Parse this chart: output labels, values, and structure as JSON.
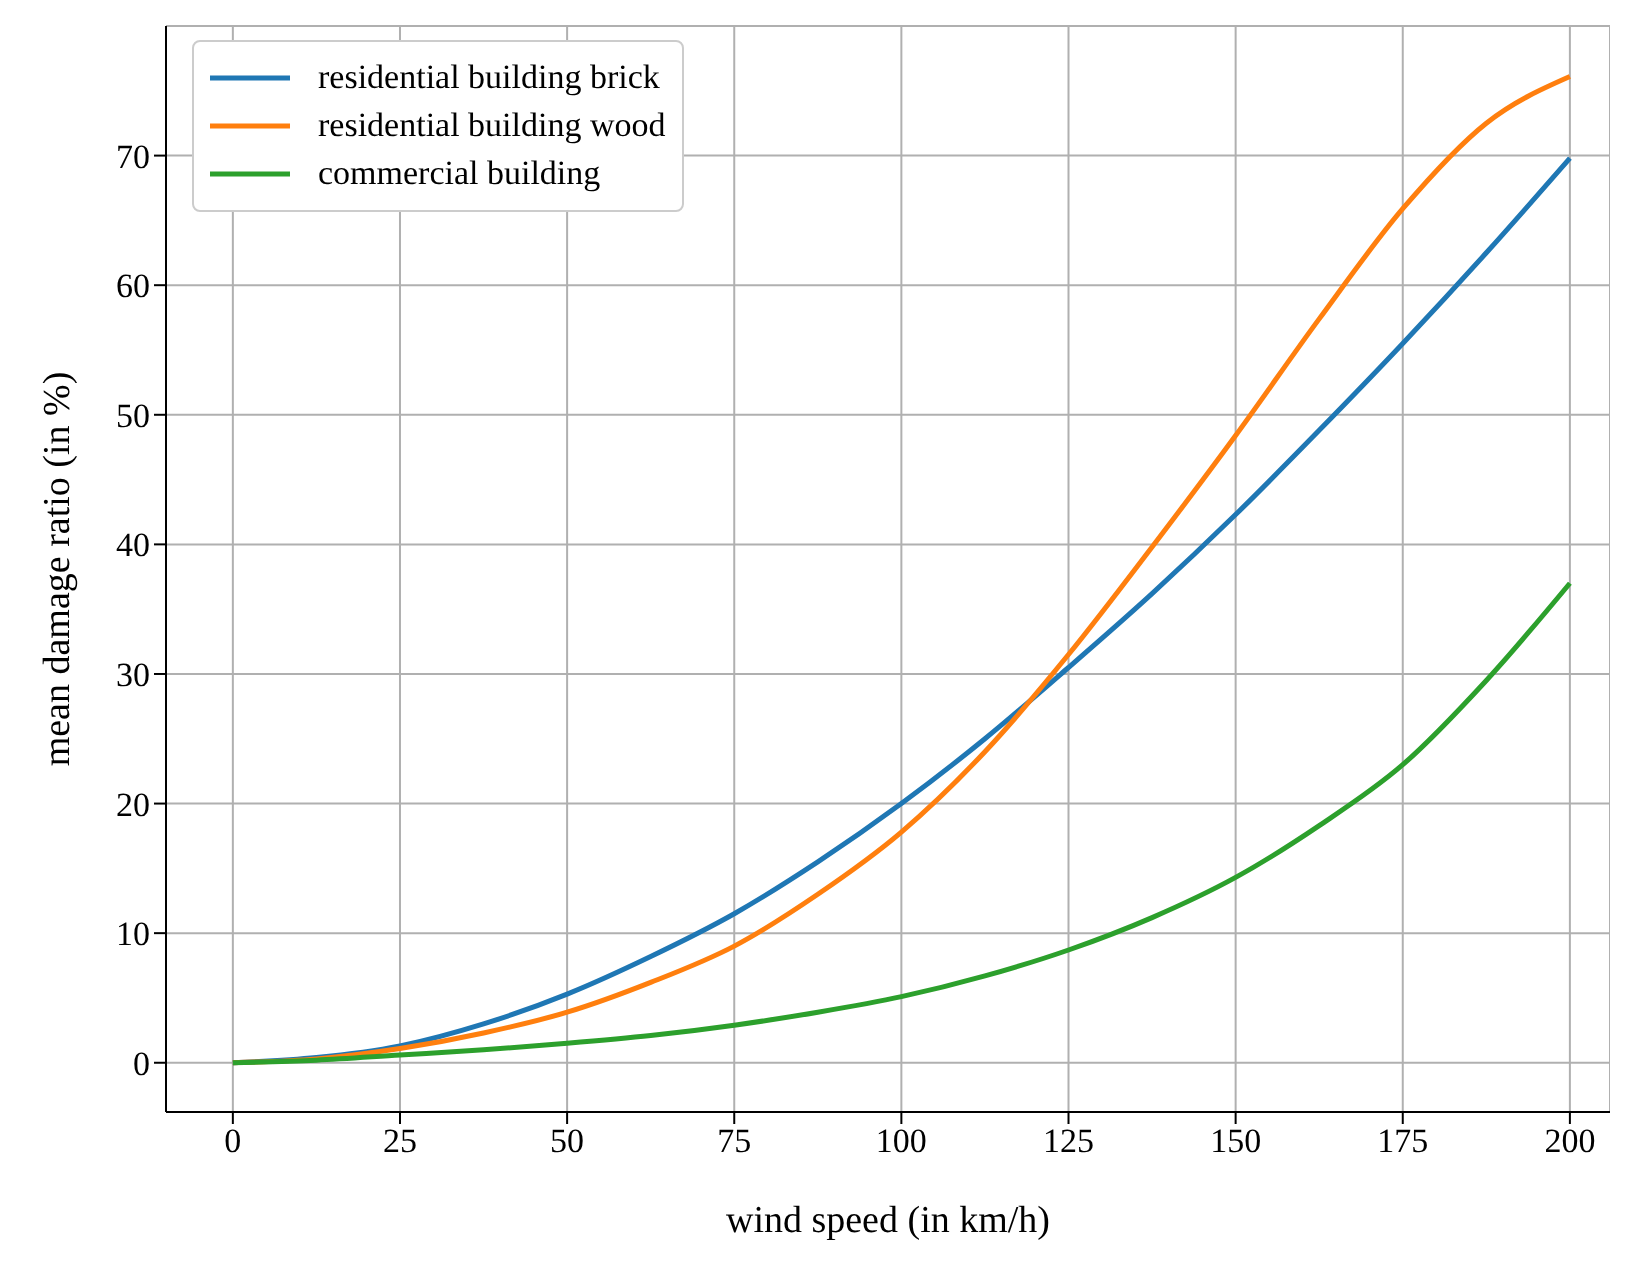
{
  "chart_data": {
    "type": "line",
    "xlabel": "wind speed (in km/h)",
    "ylabel": "mean damage ratio (in %)",
    "x": [
      0,
      12.5,
      25,
      37.5,
      50,
      62.5,
      75,
      87.5,
      100,
      112.5,
      125,
      137.5,
      150,
      162.5,
      175,
      187.5,
      200
    ],
    "series": [
      {
        "name": "residential building brick",
        "color": "#1f77b4",
        "values": [
          0,
          0.4,
          1.3,
          3.0,
          5.3,
          8.2,
          11.5,
          15.5,
          20,
          25,
          30.5,
          36.2,
          42.3,
          48.8,
          55.5,
          62.5,
          69.8
        ]
      },
      {
        "name": "residential building wood",
        "color": "#ff7f0e",
        "values": [
          0,
          0.3,
          1.1,
          2.3,
          3.9,
          6.2,
          9.0,
          13,
          17.8,
          24,
          31.5,
          39.8,
          48.4,
          57.4,
          65.9,
          72.5,
          76.1
        ]
      },
      {
        "name": "commercial building",
        "color": "#2ca02c",
        "values": [
          0,
          0.2,
          0.6,
          1.0,
          1.5,
          2.1,
          2.9,
          3.9,
          5.1,
          6.7,
          8.7,
          11.2,
          14.3,
          18.3,
          23,
          29.5,
          37
        ]
      }
    ],
    "xlim": [
      -10,
      206
    ],
    "ylim": [
      -3.8,
      80
    ],
    "xticks": [
      0,
      25,
      50,
      75,
      100,
      125,
      150,
      175,
      200
    ],
    "yticks": [
      0,
      10,
      20,
      30,
      40,
      50,
      60,
      70
    ],
    "grid": true,
    "legend": "top left",
    "marker": "none",
    "line_style": "solid"
  }
}
